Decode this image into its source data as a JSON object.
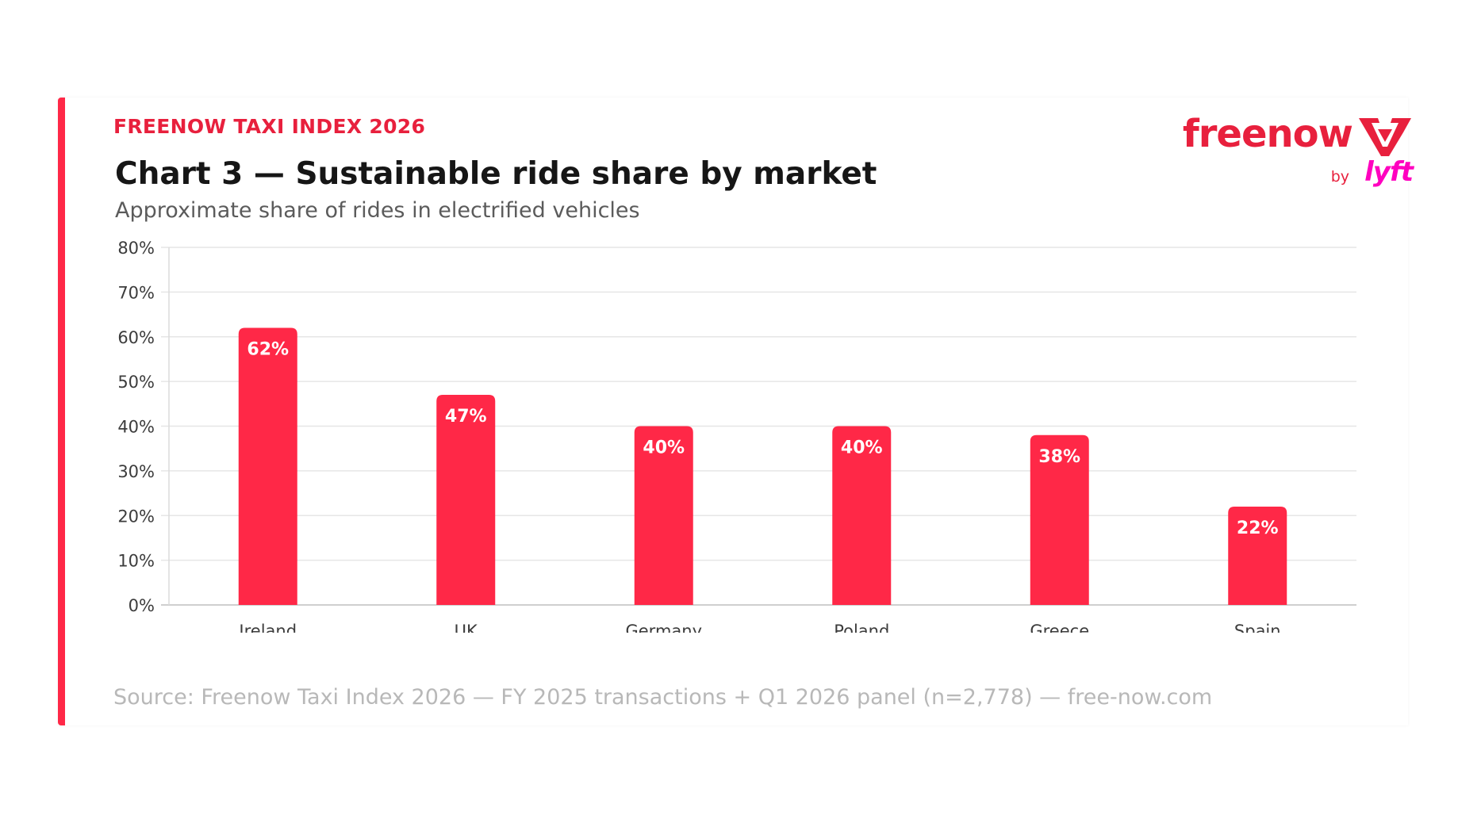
{
  "header": {
    "eyebrow": "FREENOW TAXI INDEX 2026",
    "title": "Chart 3 — Sustainable ride share by market",
    "subtitle": "Approximate share of rides in electrified vehicles"
  },
  "logo": {
    "wordmark": "freenow",
    "by": "by",
    "partner": "lyft",
    "mark_icon": "freenow-v-mark-icon"
  },
  "colors": {
    "accent": "#ff2847",
    "brand": "#e8203d",
    "partner": "#ff00bf",
    "bar": "#ff2847",
    "bar_label": "#ffffff",
    "grid": "#e6e6e6"
  },
  "chart_data": {
    "type": "bar",
    "categories": [
      "Ireland",
      "UK",
      "Germany",
      "Poland",
      "Greece",
      "Spain"
    ],
    "values": [
      62,
      47,
      40,
      40,
      38,
      22
    ],
    "data_labels": [
      "62%",
      "47%",
      "40%",
      "40%",
      "38%",
      "22%"
    ],
    "ylim": [
      0,
      80
    ],
    "yticks": [
      0,
      10,
      20,
      30,
      40,
      50,
      60,
      70,
      80
    ],
    "ytick_labels": [
      "0%",
      "10%",
      "20%",
      "30%",
      "40%",
      "50%",
      "60%",
      "70%",
      "80%"
    ],
    "grid": true,
    "legend": "none"
  },
  "footer": {
    "source": "Source: Freenow Taxi Index 2026 — FY 2025 transactions + Q1 2026 panel (n=2,778) — free-now.com"
  }
}
